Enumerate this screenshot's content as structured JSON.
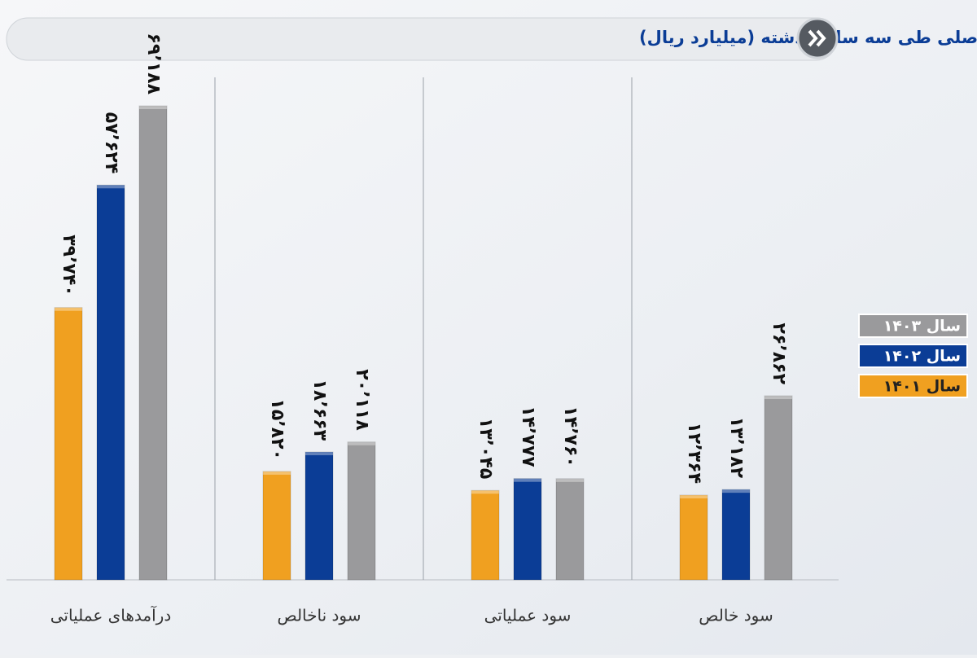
{
  "chart_data": {
    "type": "bar",
    "title": "عملکرد شرکت اصلی طی سه سال گذشته (میلیارد ریال)",
    "categories": [
      "درآمدهای عملیاتی",
      "سود ناخالص",
      "سود عملیاتی",
      "سود خالص"
    ],
    "series": [
      {
        "name": "سال ۱۴۰۱",
        "color": "#f0a020",
        "values": [
          39740,
          15820,
          13045,
          12364
        ],
        "value_labels": [
          "۳۹٬۷۴۰",
          "۱۵٬۸۲۰",
          "۱۳٬۰۴۵",
          "۱۲٬۳۶۴"
        ]
      },
      {
        "name": "سال ۱۴۰۲",
        "color": "#0b3d96",
        "values": [
          57624,
          18663,
          14777,
          13182
        ],
        "value_labels": [
          "۵۷٬۶۲۴",
          "۱۸٬۶۶۳",
          "۱۴٬۷۷۷",
          "۱۳٬۱۸۲"
        ]
      },
      {
        "name": "سال ۱۴۰۳",
        "color": "#9a9a9c",
        "values": [
          69188,
          20118,
          14760,
          26862
        ],
        "value_labels": [
          "۶۹٬۱۸۸",
          "۲۰٬۱۱۸",
          "۱۴٬۷۶۰",
          "۲۶٬۸۶۲"
        ]
      }
    ]
  }
}
